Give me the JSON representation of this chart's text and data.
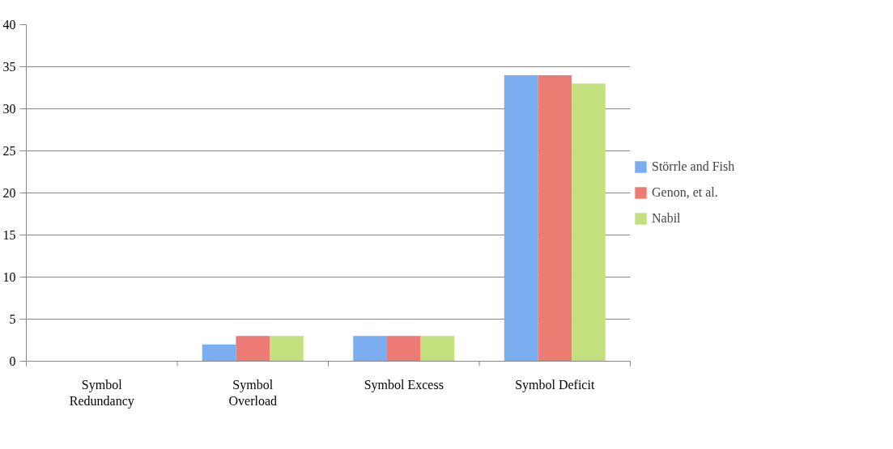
{
  "chart_data": {
    "type": "bar",
    "categories": [
      "Symbol Redundancy",
      "Symbol Overload",
      "Symbol Excess",
      "Symbol Deficit"
    ],
    "series": [
      {
        "name": "Störrle and Fish",
        "color": "#7aaef0",
        "values": [
          0,
          2,
          3,
          34
        ]
      },
      {
        "name": "Genon, et al.",
        "color": "#ec7b74",
        "values": [
          0,
          3,
          3,
          34
        ]
      },
      {
        "name": "Nabil",
        "color": "#c2e07e",
        "values": [
          0,
          3,
          3,
          33
        ]
      }
    ],
    "ylim": [
      0,
      40
    ],
    "yticks": [
      0,
      5,
      10,
      15,
      20,
      25,
      30,
      35,
      40
    ],
    "grid": "y",
    "legend": "right"
  }
}
